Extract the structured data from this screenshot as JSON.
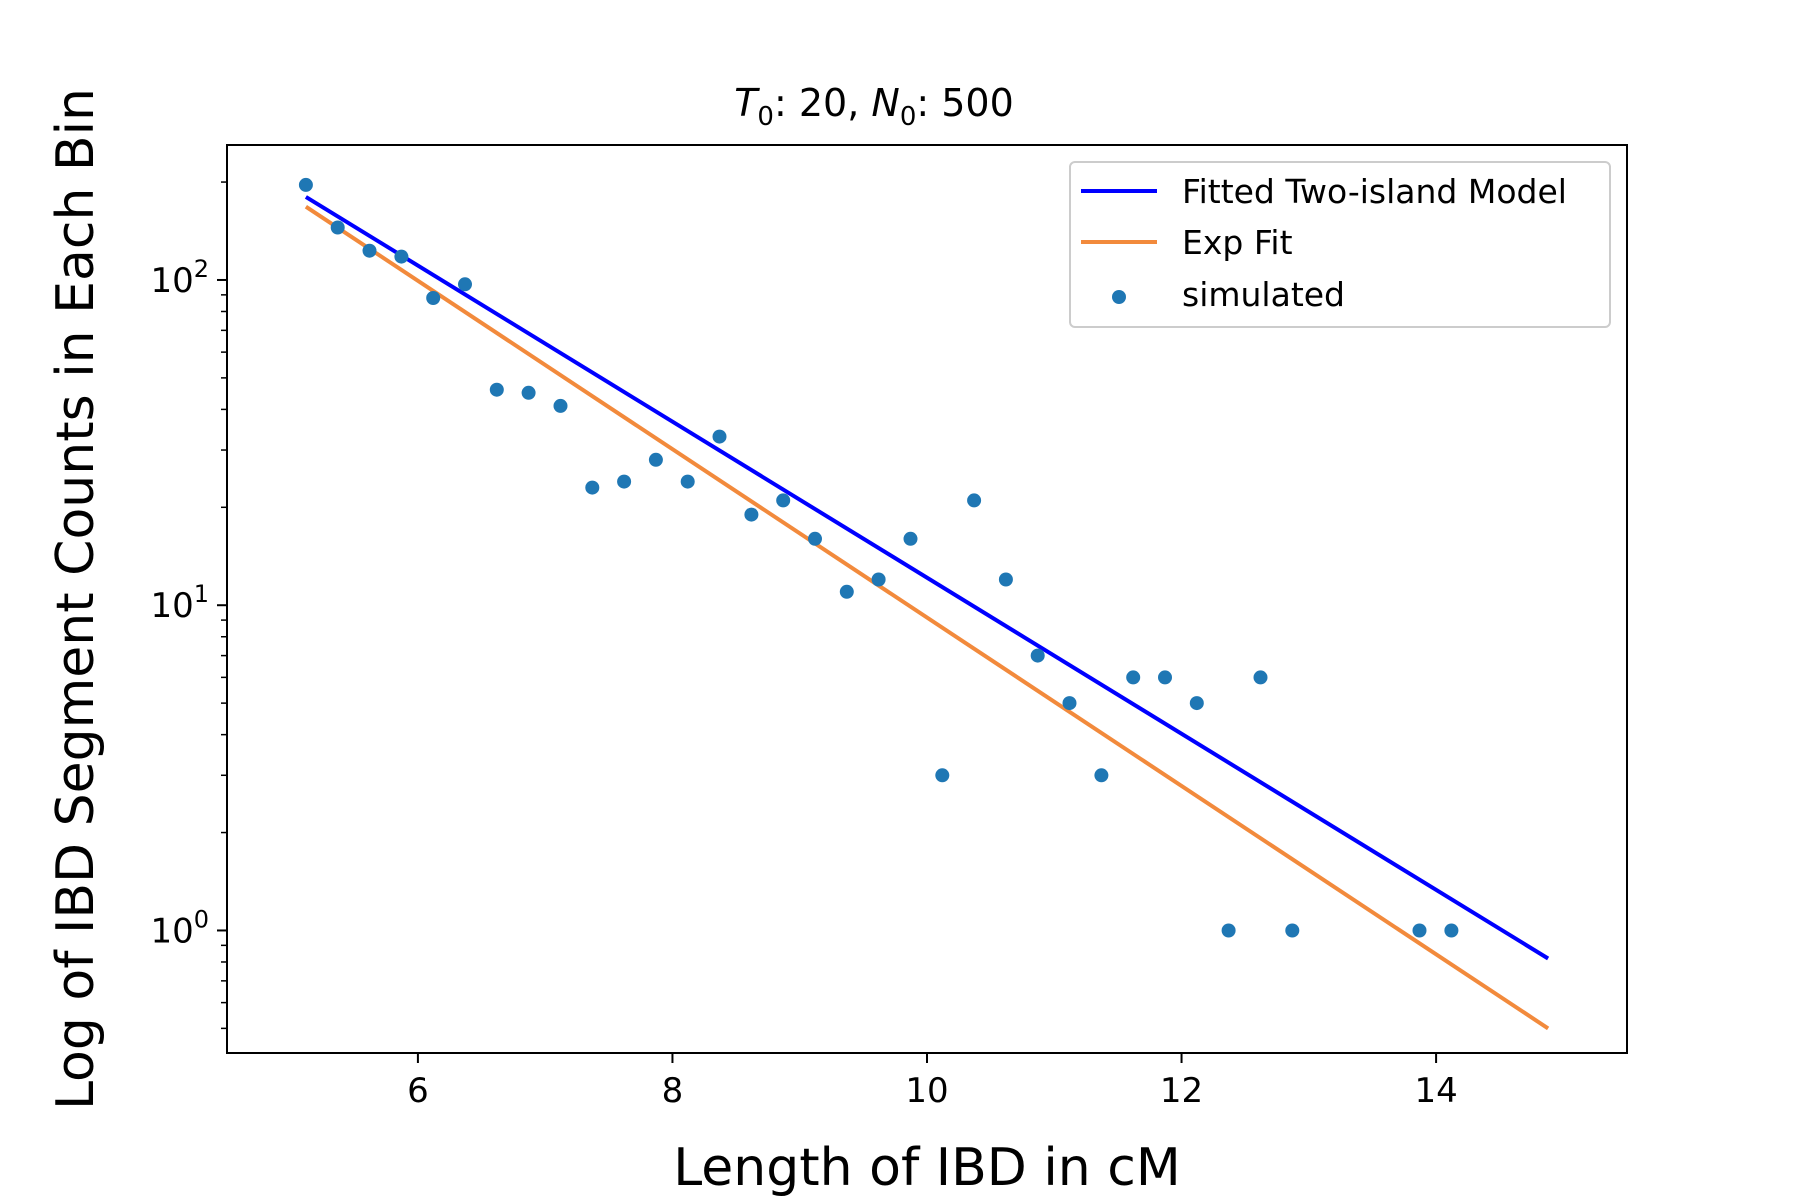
{
  "chart_data": {
    "type": "scatter",
    "title": "T0: 20, N0: 500",
    "title_parts": {
      "t_sym": "T",
      "t_sub": "0",
      "t_val": ": 20, ",
      "n_sym": "N",
      "n_sub": "0",
      "n_val": ": 500"
    },
    "xlabel": "Length of IBD in cM",
    "ylabel": "Log of IBD Segment Counts in Each Bin",
    "xlim": [
      4.5,
      15.5
    ],
    "ylim": [
      0.42,
      260
    ],
    "yscale": "log",
    "xticks": [
      6,
      8,
      10,
      12,
      14
    ],
    "xtick_labels": [
      "6",
      "8",
      "10",
      "12",
      "14"
    ],
    "yticks": [
      1,
      10,
      100
    ],
    "ytick_labels": [
      {
        "base": "10",
        "exp": "0"
      },
      {
        "base": "10",
        "exp": "1"
      },
      {
        "base": "10",
        "exp": "2"
      }
    ],
    "legend_position": "top-right",
    "grid": false,
    "series": [
      {
        "name": "Fitted Two-island Model",
        "kind": "line",
        "color": "#0000ff",
        "x": [
          5.12,
          14.88
        ],
        "y": [
          180,
          0.82
        ]
      },
      {
        "name": "Exp Fit",
        "kind": "line",
        "color": "#f28a3c",
        "x": [
          5.12,
          14.88
        ],
        "y": [
          168,
          0.5
        ]
      },
      {
        "name": "simulated",
        "kind": "scatter",
        "color": "#1f77b4",
        "x": [
          5.12,
          5.37,
          5.62,
          5.87,
          6.12,
          6.37,
          6.62,
          6.87,
          7.12,
          7.37,
          7.62,
          7.87,
          8.12,
          8.37,
          8.62,
          8.87,
          9.12,
          9.37,
          9.62,
          9.87,
          10.12,
          10.37,
          10.62,
          10.87,
          11.12,
          11.37,
          11.62,
          11.87,
          12.12,
          12.37,
          12.62,
          12.87,
          13.87,
          14.12
        ],
        "y": [
          196,
          145,
          123,
          118,
          88,
          97,
          46,
          45,
          41,
          23,
          24,
          28,
          24,
          33,
          19,
          21,
          16,
          11,
          12,
          16,
          3,
          21,
          12,
          7,
          5,
          3,
          6,
          6,
          5,
          1,
          6,
          1,
          1,
          1
        ]
      }
    ]
  }
}
